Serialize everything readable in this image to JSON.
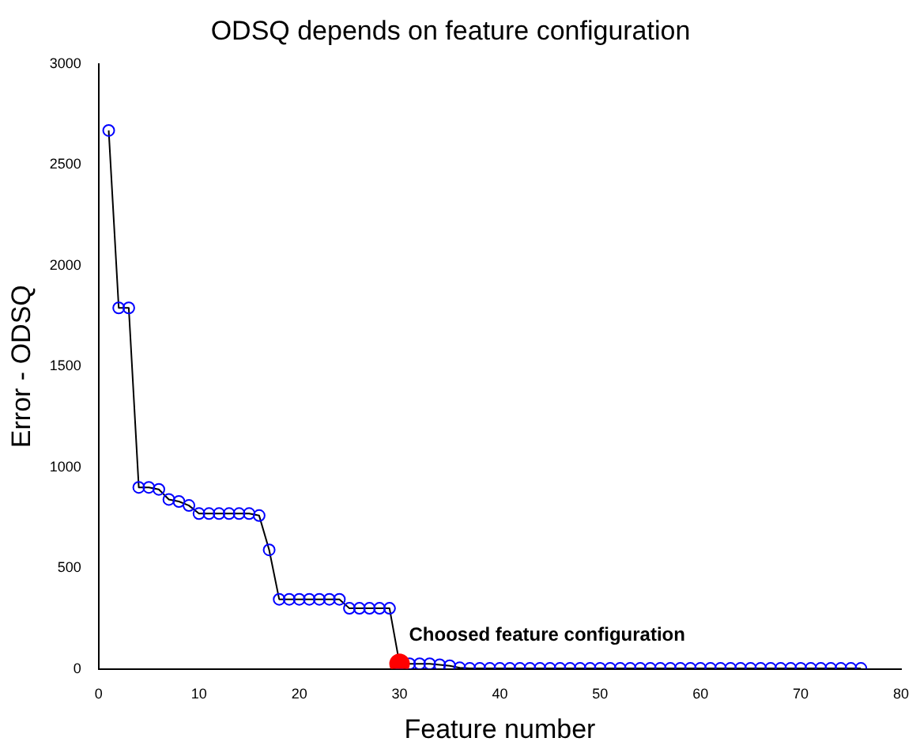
{
  "chart_data": {
    "type": "line",
    "title": "ODSQ depends on feature configuration",
    "xlabel": "Feature number",
    "ylabel": "Error - ODSQ",
    "xlim": [
      0,
      80
    ],
    "xticks": [
      0,
      10,
      20,
      30,
      40,
      50,
      60,
      70,
      80
    ],
    "ylim": [
      0,
      3000
    ],
    "yticks": [
      0,
      500,
      1000,
      1500,
      2000,
      2500,
      3000
    ],
    "grid": false,
    "legend": false,
    "marker": "circle",
    "line_style": "solid",
    "series": [
      {
        "color": "#0000ff",
        "x": [
          1,
          2,
          3,
          4,
          5,
          6,
          7,
          8,
          9,
          10,
          11,
          12,
          13,
          14,
          15,
          16,
          17,
          18,
          19,
          20,
          21,
          22,
          23,
          24,
          25,
          26,
          27,
          28,
          29,
          30,
          31,
          32,
          33,
          34,
          35,
          36,
          37,
          38,
          39,
          40,
          41,
          42,
          43,
          44,
          45,
          46,
          47,
          48,
          49,
          50,
          51,
          52,
          53,
          54,
          55,
          56,
          57,
          58,
          59,
          60,
          61,
          62,
          63,
          64,
          65,
          66,
          67,
          68,
          69,
          70,
          71,
          72,
          73,
          74,
          75,
          76
        ],
        "values": [
          2670,
          1790,
          1790,
          900,
          900,
          890,
          840,
          830,
          810,
          770,
          770,
          770,
          770,
          770,
          770,
          760,
          590,
          345,
          345,
          345,
          345,
          345,
          345,
          345,
          300,
          300,
          300,
          300,
          300,
          25,
          25,
          25,
          25,
          20,
          15,
          5,
          2,
          2,
          2,
          2,
          2,
          2,
          2,
          2,
          2,
          2,
          2,
          2,
          2,
          2,
          2,
          2,
          2,
          2,
          2,
          2,
          2,
          2,
          2,
          2,
          2,
          2,
          2,
          2,
          2,
          2,
          2,
          2,
          2,
          2,
          2,
          2,
          2,
          2,
          2,
          2
        ]
      },
      {
        "type": "scatter",
        "color": "#ff0000",
        "x": [
          30
        ],
        "values": [
          25
        ]
      }
    ],
    "annotations": [
      {
        "text": "Choosed feature configuration",
        "x": 30,
        "y": 25
      }
    ]
  }
}
